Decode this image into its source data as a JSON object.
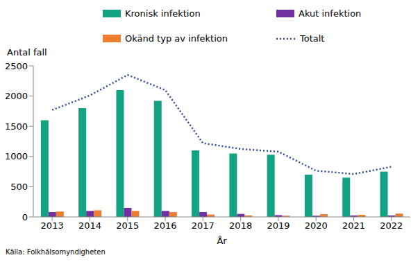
{
  "chart_data": {
    "type": "bar",
    "y_label": "Antal fall",
    "x_label": "År",
    "annotations": [
      "Källa: Folkhälsomyndigheten"
    ],
    "categories": [
      "2013",
      "2014",
      "2015",
      "2016",
      "2017",
      "2018",
      "2019",
      "2020",
      "2021",
      "2022"
    ],
    "series": [
      {
        "name": "Kronisk infektion",
        "type": "bar",
        "color": "#13a283",
        "values": [
          1600,
          1800,
          2100,
          1920,
          1100,
          1050,
          1030,
          700,
          650,
          750
        ]
      },
      {
        "name": "Akut infektion",
        "type": "bar",
        "color": "#7030a0",
        "values": [
          80,
          100,
          150,
          100,
          80,
          50,
          30,
          20,
          25,
          25
        ]
      },
      {
        "name": "Okänd typ av infektion",
        "type": "bar",
        "color": "#ed7d31",
        "values": [
          90,
          110,
          100,
          80,
          40,
          25,
          20,
          45,
          35,
          55
        ]
      },
      {
        "name": "Totalt",
        "type": "line",
        "line_style": "dotted",
        "color": "#2f4b9c",
        "values": [
          1770,
          2010,
          2350,
          2100,
          1220,
          1125,
          1080,
          765,
          710,
          830
        ]
      }
    ],
    "ylim": [
      0,
      2500
    ],
    "yticks": [
      0,
      500,
      1000,
      1500,
      2000,
      2500
    ],
    "grid": false,
    "legend": "top"
  }
}
